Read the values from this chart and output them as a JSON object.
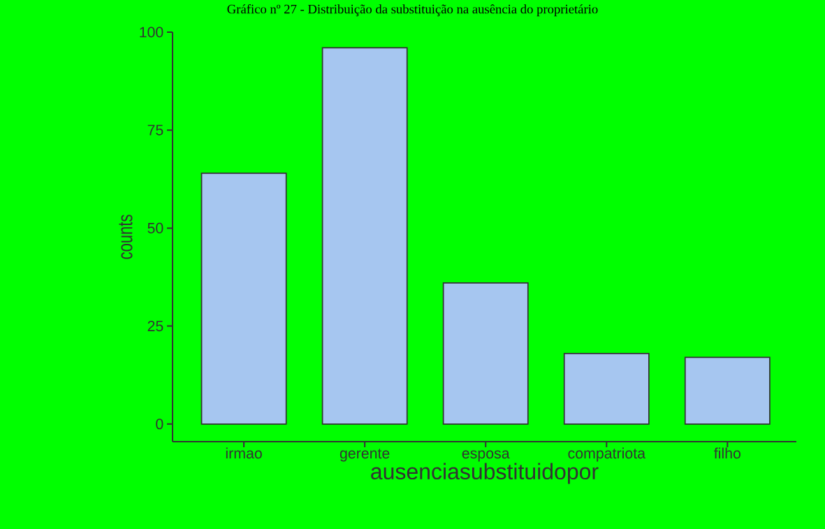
{
  "chart_data": {
    "type": "bar",
    "title": "Gráfico nº 27 - Distribuição da substituição na ausência do proprietário",
    "xlabel": "ausenciasubstituidopor",
    "ylabel": "counts",
    "categories": [
      "irmao",
      "gerente",
      "esposa",
      "compatriota",
      "filho"
    ],
    "values": [
      64,
      96,
      36,
      18,
      17
    ],
    "color": "#a6c6f0",
    "ylim": [
      -4.5,
      100
    ],
    "yticks": [
      0,
      25,
      50,
      75,
      100
    ]
  }
}
